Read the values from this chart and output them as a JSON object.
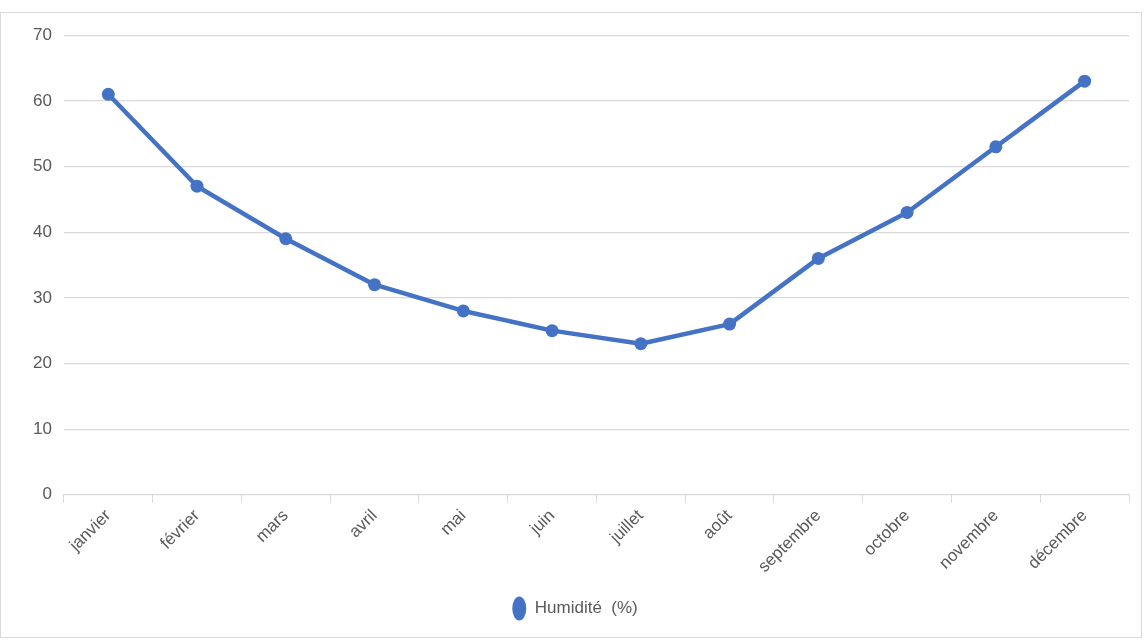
{
  "chart_data": {
    "type": "line",
    "categories": [
      "janvier",
      "février",
      "mars",
      "avril",
      "mai",
      "juin",
      "juillet",
      "août",
      "septembre",
      "octobre",
      "novembre",
      "décembre"
    ],
    "series": [
      {
        "name": "Humidité  (%)",
        "color": "#4472c4",
        "values": [
          61,
          47,
          39,
          32,
          28,
          25,
          23,
          26,
          36,
          43,
          53,
          63
        ]
      }
    ],
    "ylim": [
      0,
      70
    ],
    "yticks": [
      0,
      10,
      20,
      30,
      40,
      50,
      60,
      70
    ],
    "grid": "y",
    "legend": "bottom",
    "marker": "circle",
    "line_style": "solid"
  }
}
